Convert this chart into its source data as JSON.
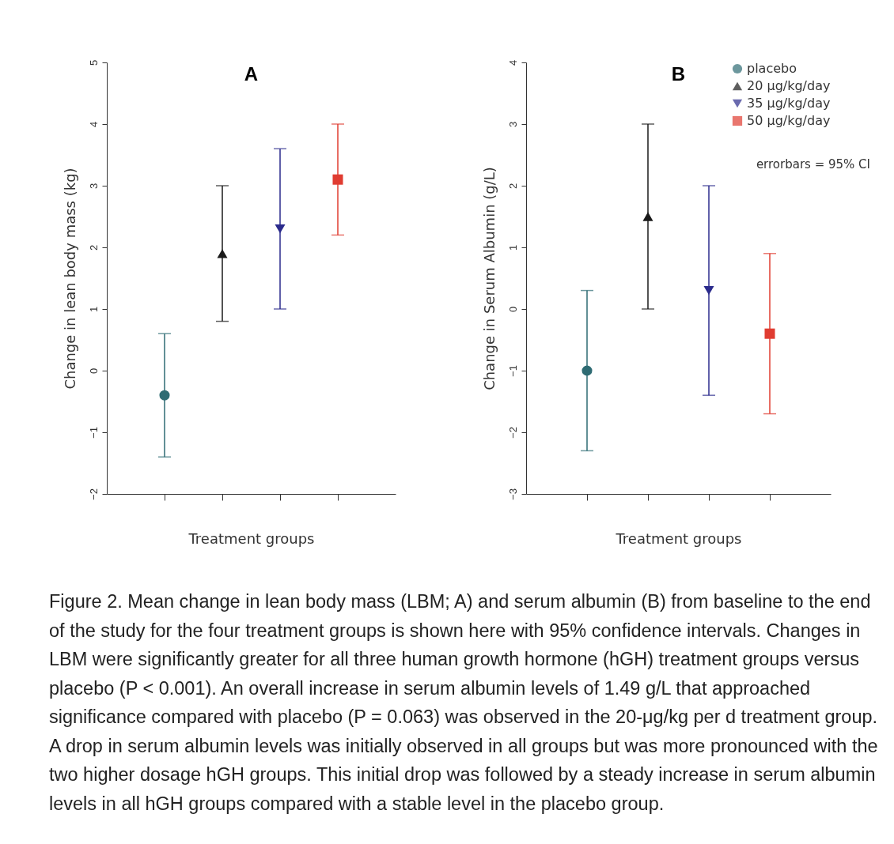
{
  "chart_data": [
    {
      "type": "scatter",
      "title": "A",
      "xlabel": "Treatment groups",
      "ylabel": "Change in lean body mass (kg)",
      "categories": [
        null,
        null,
        null,
        null
      ],
      "ylim": [
        -2,
        5
      ],
      "yticks": [
        -2,
        -1,
        0,
        1,
        2,
        3,
        4,
        5
      ],
      "grid": false,
      "tick_labels": "y",
      "series": [
        {
          "color": "#2e6b73",
          "marker": "circle",
          "values": [
            -0.4,
            null,
            null,
            null
          ],
          "errors": [
            [
              -1.4,
              0.6
            ],
            null,
            null,
            null
          ]
        },
        {
          "color": "#1a1a1a",
          "marker": "triangle",
          "values": [
            null,
            1.9,
            null,
            null
          ],
          "errors": [
            null,
            [
              0.8,
              3.0
            ],
            null,
            null
          ]
        },
        {
          "color": "#2b2b8c",
          "marker": "triangle-down",
          "values": [
            null,
            null,
            2.3,
            null
          ],
          "errors": [
            null,
            null,
            [
              1.0,
              3.6
            ],
            null
          ]
        },
        {
          "color": "#e03c31",
          "marker": "square",
          "values": [
            null,
            null,
            null,
            3.1
          ],
          "errors": [
            null,
            null,
            null,
            [
              2.2,
              4.0
            ]
          ]
        }
      ]
    },
    {
      "type": "scatter",
      "title": "B",
      "xlabel": "Treatment groups",
      "ylabel": "Change in Serum Albumin (g/L)",
      "categories": [
        null,
        null,
        null,
        null
      ],
      "ylim": [
        -3,
        4
      ],
      "yticks": [
        -3,
        -2,
        -1,
        0,
        1,
        2,
        3,
        4
      ],
      "grid": false,
      "legend": "top right",
      "tick_labels": "y",
      "annotations": [
        "errorbars = 95% CI"
      ],
      "series": [
        {
          "name": "placebo",
          "color": "#2e6b73",
          "marker": "circle",
          "values": [
            -1.0,
            null,
            null,
            null
          ],
          "errors": [
            [
              -2.3,
              0.3
            ],
            null,
            null,
            null
          ]
        },
        {
          "name": "20 μg/kg/day",
          "color": "#1a1a1a",
          "marker": "triangle",
          "values": [
            null,
            1.5,
            null,
            null
          ],
          "errors": [
            null,
            [
              0.0,
              3.0
            ],
            null,
            null
          ]
        },
        {
          "name": "35 μg/kg/day",
          "color": "#2b2b8c",
          "marker": "triangle-down",
          "values": [
            null,
            null,
            0.3,
            null
          ],
          "errors": [
            null,
            null,
            [
              -1.4,
              2.0
            ],
            null
          ]
        },
        {
          "name": "50 μg/kg/day",
          "color": "#e03c31",
          "marker": "square",
          "values": [
            null,
            null,
            null,
            -0.4
          ],
          "errors": [
            null,
            null,
            null,
            [
              -1.7,
              0.9
            ]
          ]
        }
      ]
    },
    {
      "type": "other",
      "annotations": [
        "Figure 2. Mean change in lean body mass (LBM; A) and serum albumin (B) from baseline to the end of the study for the four treatment groups is shown here with 95% confidence intervals. Changes in LBM were significantly greater for all three human growth hormone (hGH) treatment groups versus placebo (P < 0.001). An overall increase in serum albumin levels of 1.49 g/L that approached significance compared with placebo (P = 0.063) was observed in the 20-μg/kg per d treatment group. A drop in serum albumin levels was initially observed in all groups but was more pronounced with the two higher dosage hGH groups. This initial drop was followed by a steady increase in serum albumin levels in all hGH groups compared with a stable level in the placebo group."
      ]
    }
  ]
}
